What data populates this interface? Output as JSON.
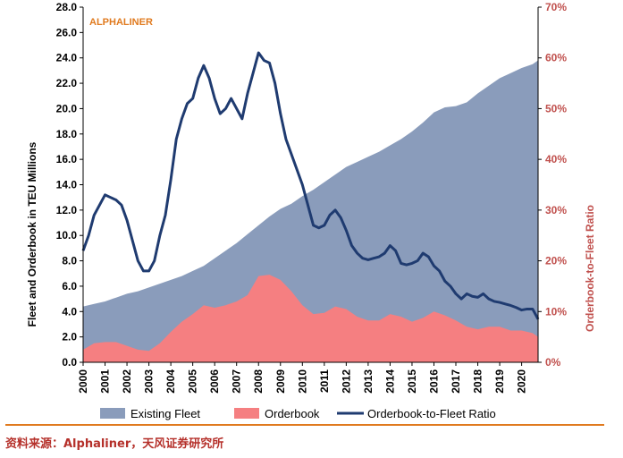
{
  "watermark": "ALPHALINER",
  "source_note": "资料来源：Alphaliner，天风证券研究所",
  "colors": {
    "existing_fleet": "#8a9cbb",
    "orderbook": "#f57f81",
    "ratio_line": "#1f3b70",
    "watermark": "#e07a1e",
    "right_axis": "#c0504d"
  },
  "chart_data": {
    "type": "area",
    "title": "",
    "ylabel": "Fleet and Orderbook in TEU Millions",
    "y2label": "Orderbook-to-Fleet Ratio",
    "ylim": [
      0,
      28
    ],
    "y2lim": [
      0,
      70
    ],
    "yticks": [
      "0.0",
      "2.0",
      "4.0",
      "6.0",
      "8.0",
      "10.0",
      "12.0",
      "14.0",
      "16.0",
      "18.0",
      "20.0",
      "22.0",
      "24.0",
      "26.0",
      "28.0"
    ],
    "y2ticks": [
      "0%",
      "10%",
      "20%",
      "30%",
      "40%",
      "50%",
      "60%",
      "70%"
    ],
    "xticks": [
      "2000",
      "2001",
      "2002",
      "2003",
      "2004",
      "2005",
      "2006",
      "2007",
      "2008",
      "2009",
      "2010",
      "2011",
      "2012",
      "2013",
      "2014",
      "2015",
      "2016",
      "2017",
      "2018",
      "2019",
      "2020"
    ],
    "xlim": [
      2000,
      2020.75
    ],
    "legend_position": "bottom",
    "grid": false,
    "series": [
      {
        "name": "Existing Fleet",
        "kind": "area",
        "axis": "left",
        "x": [
          2000,
          2000.5,
          2001,
          2001.5,
          2002,
          2002.5,
          2003,
          2003.5,
          2004,
          2004.5,
          2005,
          2005.5,
          2006,
          2006.5,
          2007,
          2007.5,
          2008,
          2008.5,
          2009,
          2009.5,
          2010,
          2010.5,
          2011,
          2011.5,
          2012,
          2012.5,
          2013,
          2013.5,
          2014,
          2014.5,
          2015,
          2015.5,
          2016,
          2016.5,
          2017,
          2017.5,
          2018,
          2018.5,
          2019,
          2019.5,
          2020,
          2020.5,
          2020.75
        ],
        "values": [
          4.4,
          4.6,
          4.8,
          5.1,
          5.4,
          5.6,
          5.9,
          6.2,
          6.5,
          6.8,
          7.2,
          7.6,
          8.2,
          8.8,
          9.4,
          10.1,
          10.8,
          11.5,
          12.1,
          12.5,
          13.1,
          13.6,
          14.2,
          14.8,
          15.4,
          15.8,
          16.2,
          16.6,
          17.1,
          17.6,
          18.2,
          18.9,
          19.7,
          20.1,
          20.2,
          20.5,
          21.2,
          21.8,
          22.4,
          22.8,
          23.2,
          23.5,
          23.8
        ]
      },
      {
        "name": "Orderbook",
        "kind": "area",
        "axis": "left",
        "x": [
          2000,
          2000.5,
          2001,
          2001.5,
          2002,
          2002.5,
          2003,
          2003.5,
          2004,
          2004.5,
          2005,
          2005.5,
          2006,
          2006.5,
          2007,
          2007.5,
          2008,
          2008.5,
          2009,
          2009.5,
          2010,
          2010.5,
          2011,
          2011.5,
          2012,
          2012.5,
          2013,
          2013.5,
          2014,
          2014.5,
          2015,
          2015.5,
          2016,
          2016.5,
          2017,
          2017.5,
          2018,
          2018.5,
          2019,
          2019.5,
          2020,
          2020.5,
          2020.75
        ],
        "values": [
          1.0,
          1.5,
          1.6,
          1.6,
          1.3,
          1.0,
          0.9,
          1.5,
          2.4,
          3.2,
          3.8,
          4.5,
          4.3,
          4.5,
          4.8,
          5.3,
          6.8,
          6.9,
          6.5,
          5.6,
          4.5,
          3.8,
          3.9,
          4.4,
          4.2,
          3.6,
          3.3,
          3.3,
          3.8,
          3.6,
          3.2,
          3.5,
          4.0,
          3.7,
          3.3,
          2.8,
          2.6,
          2.8,
          2.8,
          2.5,
          2.5,
          2.3,
          2.0
        ]
      },
      {
        "name": "Orderbook-to-Fleet Ratio",
        "kind": "line",
        "axis": "right",
        "unit": "%",
        "x": [
          2000,
          2000.25,
          2000.5,
          2000.75,
          2001,
          2001.25,
          2001.5,
          2001.75,
          2002,
          2002.25,
          2002.5,
          2002.75,
          2003,
          2003.25,
          2003.5,
          2003.75,
          2004,
          2004.25,
          2004.5,
          2004.75,
          2005,
          2005.25,
          2005.5,
          2005.75,
          2006,
          2006.25,
          2006.5,
          2006.75,
          2007,
          2007.25,
          2007.5,
          2007.75,
          2008,
          2008.25,
          2008.5,
          2008.75,
          2009,
          2009.25,
          2009.5,
          2009.75,
          2010,
          2010.25,
          2010.5,
          2010.75,
          2011,
          2011.25,
          2011.5,
          2011.75,
          2012,
          2012.25,
          2012.5,
          2012.75,
          2013,
          2013.25,
          2013.5,
          2013.75,
          2014,
          2014.25,
          2014.5,
          2014.75,
          2015,
          2015.25,
          2015.5,
          2015.75,
          2016,
          2016.25,
          2016.5,
          2016.75,
          2017,
          2017.25,
          2017.5,
          2017.75,
          2018,
          2018.25,
          2018.5,
          2018.75,
          2019,
          2019.25,
          2019.5,
          2019.75,
          2020,
          2020.25,
          2020.5,
          2020.75
        ],
        "values": [
          22,
          25,
          29,
          31,
          33,
          32.5,
          32,
          31,
          28,
          24,
          20,
          18,
          18,
          20,
          25,
          29,
          36,
          44,
          48,
          51,
          52,
          56,
          58.5,
          56,
          52,
          49,
          50,
          52,
          50,
          48,
          53,
          57,
          61,
          59.5,
          59,
          55,
          49,
          44,
          41,
          38,
          35,
          31,
          27,
          26.5,
          27,
          29,
          30,
          28.5,
          26,
          23,
          21.5,
          20.5,
          20.2,
          20.5,
          20.8,
          21.5,
          23,
          22,
          19.5,
          19.2,
          19.5,
          20,
          21.5,
          20.8,
          19,
          18,
          16,
          15,
          13.5,
          12.5,
          13.5,
          13,
          12.8,
          13.5,
          12.5,
          12,
          11.8,
          11.5,
          11.2,
          10.8,
          10.3,
          10.5,
          10.5,
          8.5
        ]
      }
    ]
  }
}
